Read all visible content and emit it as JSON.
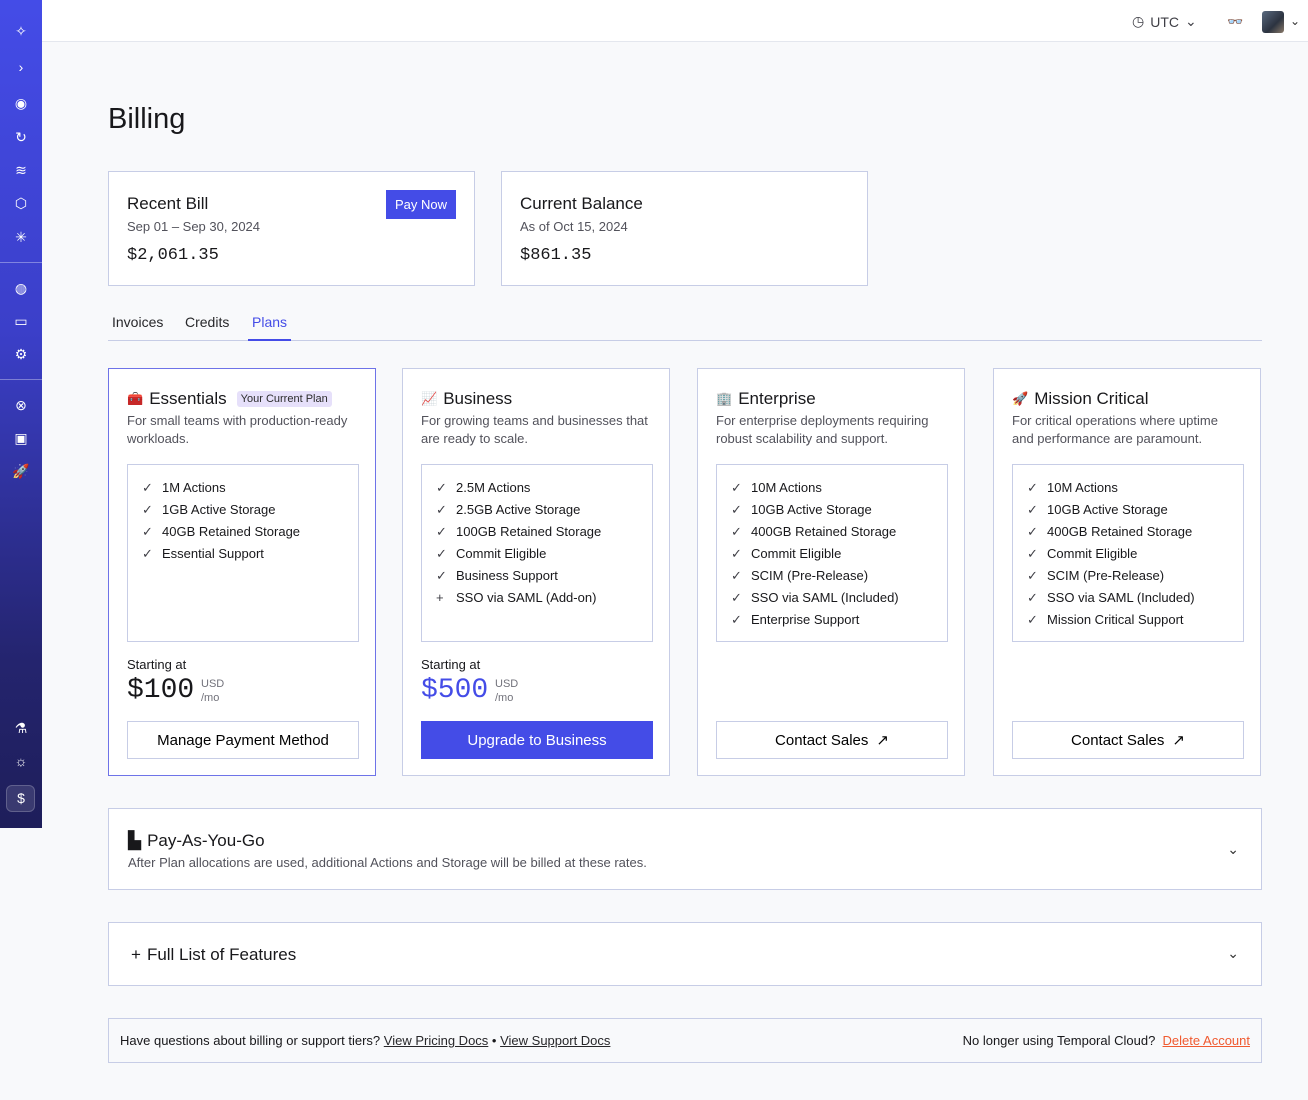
{
  "sidebar": {
    "icons": [
      "temporal-logo-icon",
      "expand-icon",
      "namespaces-icon",
      "history-icon",
      "layers-icon",
      "package-icon",
      "asterisk-icon",
      "usage-icon",
      "billing-icon",
      "settings-icon",
      "support-icon",
      "feedback-icon",
      "getting-started-icon",
      "labs-icon",
      "theme-icon",
      "billing-active-icon"
    ]
  },
  "topbar": {
    "timezone": "UTC"
  },
  "page": {
    "title": "Billing"
  },
  "recent_bill": {
    "title": "Recent Bill",
    "period": "Sep 01 – Sep 30, 2024",
    "amount": "$2,061.35",
    "pay_label": "Pay Now"
  },
  "balance": {
    "title": "Current Balance",
    "as_of": "As of Oct 15, 2024",
    "amount": "$861.35"
  },
  "tabs": [
    {
      "label": "Invoices"
    },
    {
      "label": "Credits"
    },
    {
      "label": "Plans",
      "active": true
    }
  ],
  "plans": [
    {
      "name": "Essentials",
      "badge": "Your Current Plan",
      "desc": "For small teams with production-ready workloads.",
      "features": [
        "1M Actions",
        "1GB Active Storage",
        "40GB Retained Storage",
        "Essential Support"
      ],
      "starting": "Starting at",
      "price": "$100",
      "currency": "USD",
      "per": "/mo",
      "button": "Manage Payment Method"
    },
    {
      "name": "Business",
      "desc": "For growing teams and businesses that are ready to scale.",
      "features": [
        "2.5M Actions",
        "2.5GB Active Storage",
        "100GB Retained Storage",
        "Commit Eligible",
        "Business Support",
        "SSO via SAML (Add-on)"
      ],
      "starting": "Starting at",
      "price": "$500",
      "currency": "USD",
      "per": "/mo",
      "button": "Upgrade to Business"
    },
    {
      "name": "Enterprise",
      "desc": "For enterprise deployments requiring robust scalability and support.",
      "features": [
        "10M Actions",
        "10GB Active Storage",
        "400GB Retained Storage",
        "Commit Eligible",
        "SCIM (Pre-Release)",
        "SSO via SAML (Included)",
        "Enterprise Support"
      ],
      "button": "Contact Sales"
    },
    {
      "name": "Mission Critical",
      "desc": "For critical operations where uptime and performance are paramount.",
      "features": [
        "10M Actions",
        "10GB Active Storage",
        "400GB Retained Storage",
        "Commit Eligible",
        "SCIM (Pre-Release)",
        "SSO via SAML (Included)",
        "Mission Critical Support"
      ],
      "button": "Contact Sales"
    }
  ],
  "payg": {
    "title": "Pay-As-You-Go",
    "desc": "After Plan allocations are used, additional Actions and Storage will be billed at these rates."
  },
  "features_list": {
    "title": "Full List of Features"
  },
  "footer": {
    "question": "Have questions about billing or support tiers?",
    "pricing_link": "View Pricing Docs",
    "support_link": "View Support Docs",
    "leaving": "No longer using Temporal Cloud?",
    "delete_link": "Delete Account"
  },
  "colors": {
    "accent": "#444ce7",
    "danger": "#f05a30"
  }
}
